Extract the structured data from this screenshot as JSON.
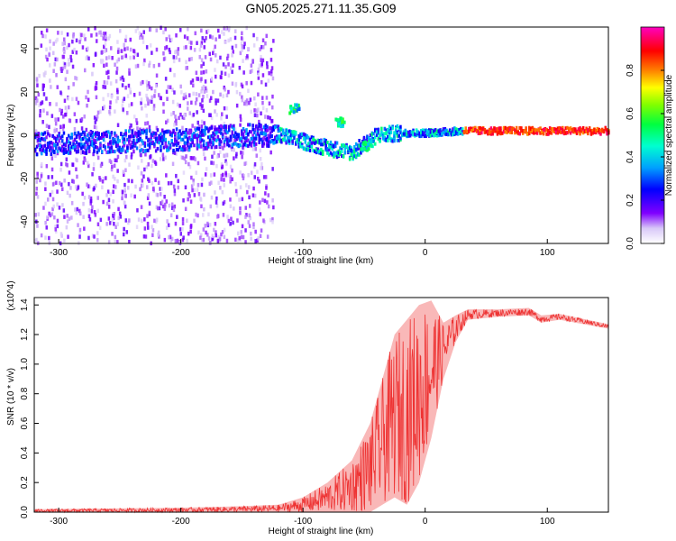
{
  "title": "GN05.2025.271.11.35.G09",
  "chart_data": [
    {
      "type": "heatmap",
      "name": "spectrogram",
      "title": "GN05.2025.271.11.35.G09",
      "xlabel": "Height of straight line (km)",
      "ylabel": "Frequency (Hz)",
      "xlim": [
        -320,
        150
      ],
      "ylim": [
        -50,
        50
      ],
      "xticks": [
        -300,
        -200,
        -100,
        0,
        100
      ],
      "yticks": [
        -40,
        -20,
        0,
        20,
        40
      ],
      "colorbar": {
        "label": "Normalized spectral amplitude",
        "range": [
          0.0,
          1.0
        ],
        "ticks": [
          0.0,
          0.2,
          0.4,
          0.6,
          0.8
        ],
        "tick_labels": [
          "0.0",
          "0.2",
          "0.4",
          "0.6",
          "0.8"
        ],
        "colormap": "white-purple-blue-cyan-green-yellow-red-magenta"
      },
      "features": {
        "noise_region_x": [
          -320,
          -125
        ],
        "central_trace": [
          {
            "x": -320,
            "f": -4
          },
          {
            "x": -250,
            "f": -3
          },
          {
            "x": -200,
            "f": -2
          },
          {
            "x": -150,
            "f": 0
          },
          {
            "x": -120,
            "f": 0
          },
          {
            "x": -100,
            "f": -3
          },
          {
            "x": -80,
            "f": -6
          },
          {
            "x": -60,
            "f": -8
          },
          {
            "x": -40,
            "f": 0
          },
          {
            "x": -20,
            "f": 1
          },
          {
            "x": 0,
            "f": 1
          },
          {
            "x": 30,
            "f": 2
          },
          {
            "x": 60,
            "f": 2
          },
          {
            "x": 100,
            "f": 2
          },
          {
            "x": 150,
            "f": 2
          }
        ],
        "side_features": [
          {
            "x": -108,
            "f": 12
          },
          {
            "x": -70,
            "f": 6
          },
          {
            "x": -48,
            "f": -5
          }
        ],
        "strong_band": {
          "x_start": 30,
          "x_end": 150,
          "f": 2
        }
      }
    },
    {
      "type": "line",
      "name": "snr",
      "title": "",
      "xlabel": "Height of straight line (km)",
      "ylabel": "SNR (10 * v/v)",
      "y_multiplier": "(x10^4)",
      "color": "#ee3333",
      "xlim": [
        -320,
        150
      ],
      "ylim": [
        0,
        1.45
      ],
      "xticks": [
        -300,
        -200,
        -100,
        0,
        100
      ],
      "yticks": [
        0.0,
        0.2,
        0.4,
        0.6,
        0.8,
        1.0,
        1.2,
        1.4
      ],
      "ytick_labels": [
        "0.0",
        "0.2",
        "0.4",
        "0.6",
        "0.8",
        "1.0",
        "1.2",
        "1.4"
      ],
      "envelope": [
        {
          "x": -320,
          "lo": 0.0,
          "hi": 0.02
        },
        {
          "x": -200,
          "lo": 0.0,
          "hi": 0.03
        },
        {
          "x": -150,
          "lo": 0.0,
          "hi": 0.04
        },
        {
          "x": -120,
          "lo": 0.0,
          "hi": 0.05
        },
        {
          "x": -100,
          "lo": 0.0,
          "hi": 0.1
        },
        {
          "x": -80,
          "lo": 0.0,
          "hi": 0.2
        },
        {
          "x": -60,
          "lo": 0.0,
          "hi": 0.35
        },
        {
          "x": -45,
          "lo": 0.0,
          "hi": 0.6
        },
        {
          "x": -35,
          "lo": 0.05,
          "hi": 0.9
        },
        {
          "x": -25,
          "lo": 0.1,
          "hi": 1.2
        },
        {
          "x": -15,
          "lo": 0.05,
          "hi": 1.3
        },
        {
          "x": -5,
          "lo": 0.2,
          "hi": 1.4
        },
        {
          "x": 5,
          "lo": 0.5,
          "hi": 1.43
        },
        {
          "x": 15,
          "lo": 0.9,
          "hi": 1.28
        },
        {
          "x": 25,
          "lo": 1.15,
          "hi": 1.33
        },
        {
          "x": 35,
          "lo": 1.3,
          "hi": 1.37
        },
        {
          "x": 60,
          "lo": 1.32,
          "hi": 1.37
        },
        {
          "x": 85,
          "lo": 1.33,
          "hi": 1.38
        },
        {
          "x": 95,
          "lo": 1.28,
          "hi": 1.33
        },
        {
          "x": 110,
          "lo": 1.3,
          "hi": 1.34
        },
        {
          "x": 150,
          "lo": 1.24,
          "hi": 1.27
        }
      ]
    }
  ]
}
